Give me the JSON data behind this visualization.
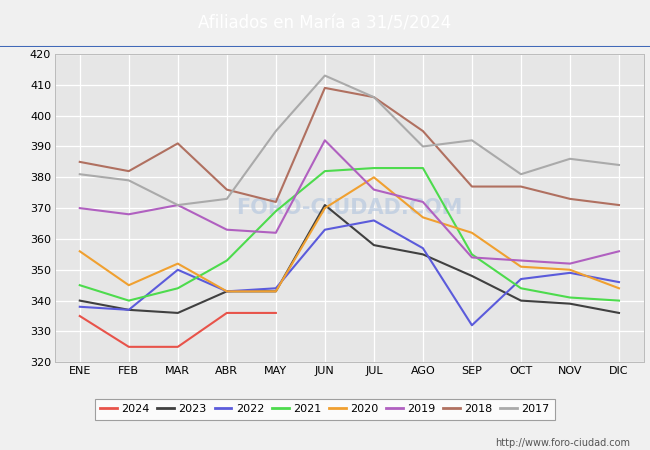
{
  "title": "Afiliados en María a 31/5/2024",
  "title_bg_color": "#4169b8",
  "title_text_color": "white",
  "ylim": [
    320,
    420
  ],
  "yticks": [
    320,
    330,
    340,
    350,
    360,
    370,
    380,
    390,
    400,
    410,
    420
  ],
  "months": [
    "ENE",
    "FEB",
    "MAR",
    "ABR",
    "MAY",
    "JUN",
    "JUL",
    "AGO",
    "SEP",
    "OCT",
    "NOV",
    "DIC"
  ],
  "series": {
    "2024": {
      "color": "#e8534a",
      "data": [
        335,
        325,
        325,
        336,
        336,
        null,
        null,
        null,
        null,
        null,
        null,
        null
      ]
    },
    "2023": {
      "color": "#404040",
      "data": [
        340,
        337,
        336,
        343,
        343,
        371,
        358,
        355,
        348,
        340,
        339,
        336
      ]
    },
    "2022": {
      "color": "#5b5bdb",
      "data": [
        338,
        337,
        350,
        343,
        344,
        363,
        366,
        357,
        332,
        347,
        349,
        346
      ]
    },
    "2021": {
      "color": "#4ddb4d",
      "data": [
        345,
        340,
        344,
        353,
        369,
        382,
        383,
        383,
        355,
        344,
        341,
        340
      ]
    },
    "2020": {
      "color": "#f0a030",
      "data": [
        356,
        345,
        352,
        343,
        343,
        370,
        380,
        367,
        362,
        351,
        350,
        344
      ]
    },
    "2019": {
      "color": "#b060c0",
      "data": [
        370,
        368,
        371,
        363,
        362,
        392,
        376,
        372,
        354,
        353,
        352,
        356
      ]
    },
    "2018": {
      "color": "#b07060",
      "data": [
        385,
        382,
        391,
        376,
        372,
        409,
        406,
        395,
        377,
        377,
        373,
        371
      ]
    },
    "2017": {
      "color": "#aaaaaa",
      "data": [
        381,
        379,
        371,
        373,
        395,
        413,
        406,
        390,
        392,
        381,
        386,
        384
      ]
    }
  },
  "legend_order": [
    "2024",
    "2023",
    "2022",
    "2021",
    "2020",
    "2019",
    "2018",
    "2017"
  ],
  "watermark": "FORO-CIUDAD.COM",
  "url": "http://www.foro-ciudad.com",
  "outer_bg_color": "#f0f0f0",
  "plot_bg_color": "#e6e6e6",
  "grid_color": "white",
  "line_width": 1.5
}
